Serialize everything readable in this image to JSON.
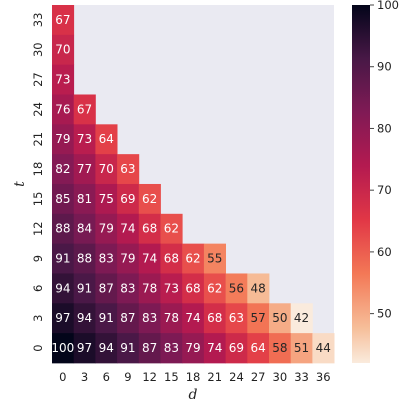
{
  "chart_data": {
    "type": "heatmap",
    "title": "",
    "xlabel": "d",
    "ylabel": "t",
    "x_categories": [
      "0",
      "3",
      "6",
      "9",
      "12",
      "15",
      "18",
      "21",
      "24",
      "27",
      "30",
      "33",
      "36"
    ],
    "y_categories": [
      "33",
      "30",
      "27",
      "24",
      "21",
      "18",
      "15",
      "12",
      "9",
      "6",
      "3",
      "0"
    ],
    "rows": [
      [
        67
      ],
      [
        70
      ],
      [
        73
      ],
      [
        76,
        67
      ],
      [
        79,
        73,
        64
      ],
      [
        82,
        77,
        70,
        63
      ],
      [
        85,
        81,
        75,
        69,
        62
      ],
      [
        88,
        84,
        79,
        74,
        68,
        62
      ],
      [
        91,
        88,
        83,
        79,
        74,
        68,
        62,
        55
      ],
      [
        94,
        91,
        87,
        83,
        78,
        73,
        68,
        62,
        56,
        48
      ],
      [
        97,
        94,
        91,
        87,
        83,
        78,
        74,
        68,
        63,
        57,
        50,
        42
      ],
      [
        100,
        97,
        94,
        91,
        87,
        83,
        79,
        74,
        69,
        64,
        58,
        51,
        44
      ]
    ],
    "colorbar": {
      "min": 42,
      "max": 100,
      "ticks": [
        "100",
        "90",
        "80",
        "70",
        "60",
        "50"
      ]
    },
    "background_color": "#eaeaf2",
    "grid": false
  }
}
